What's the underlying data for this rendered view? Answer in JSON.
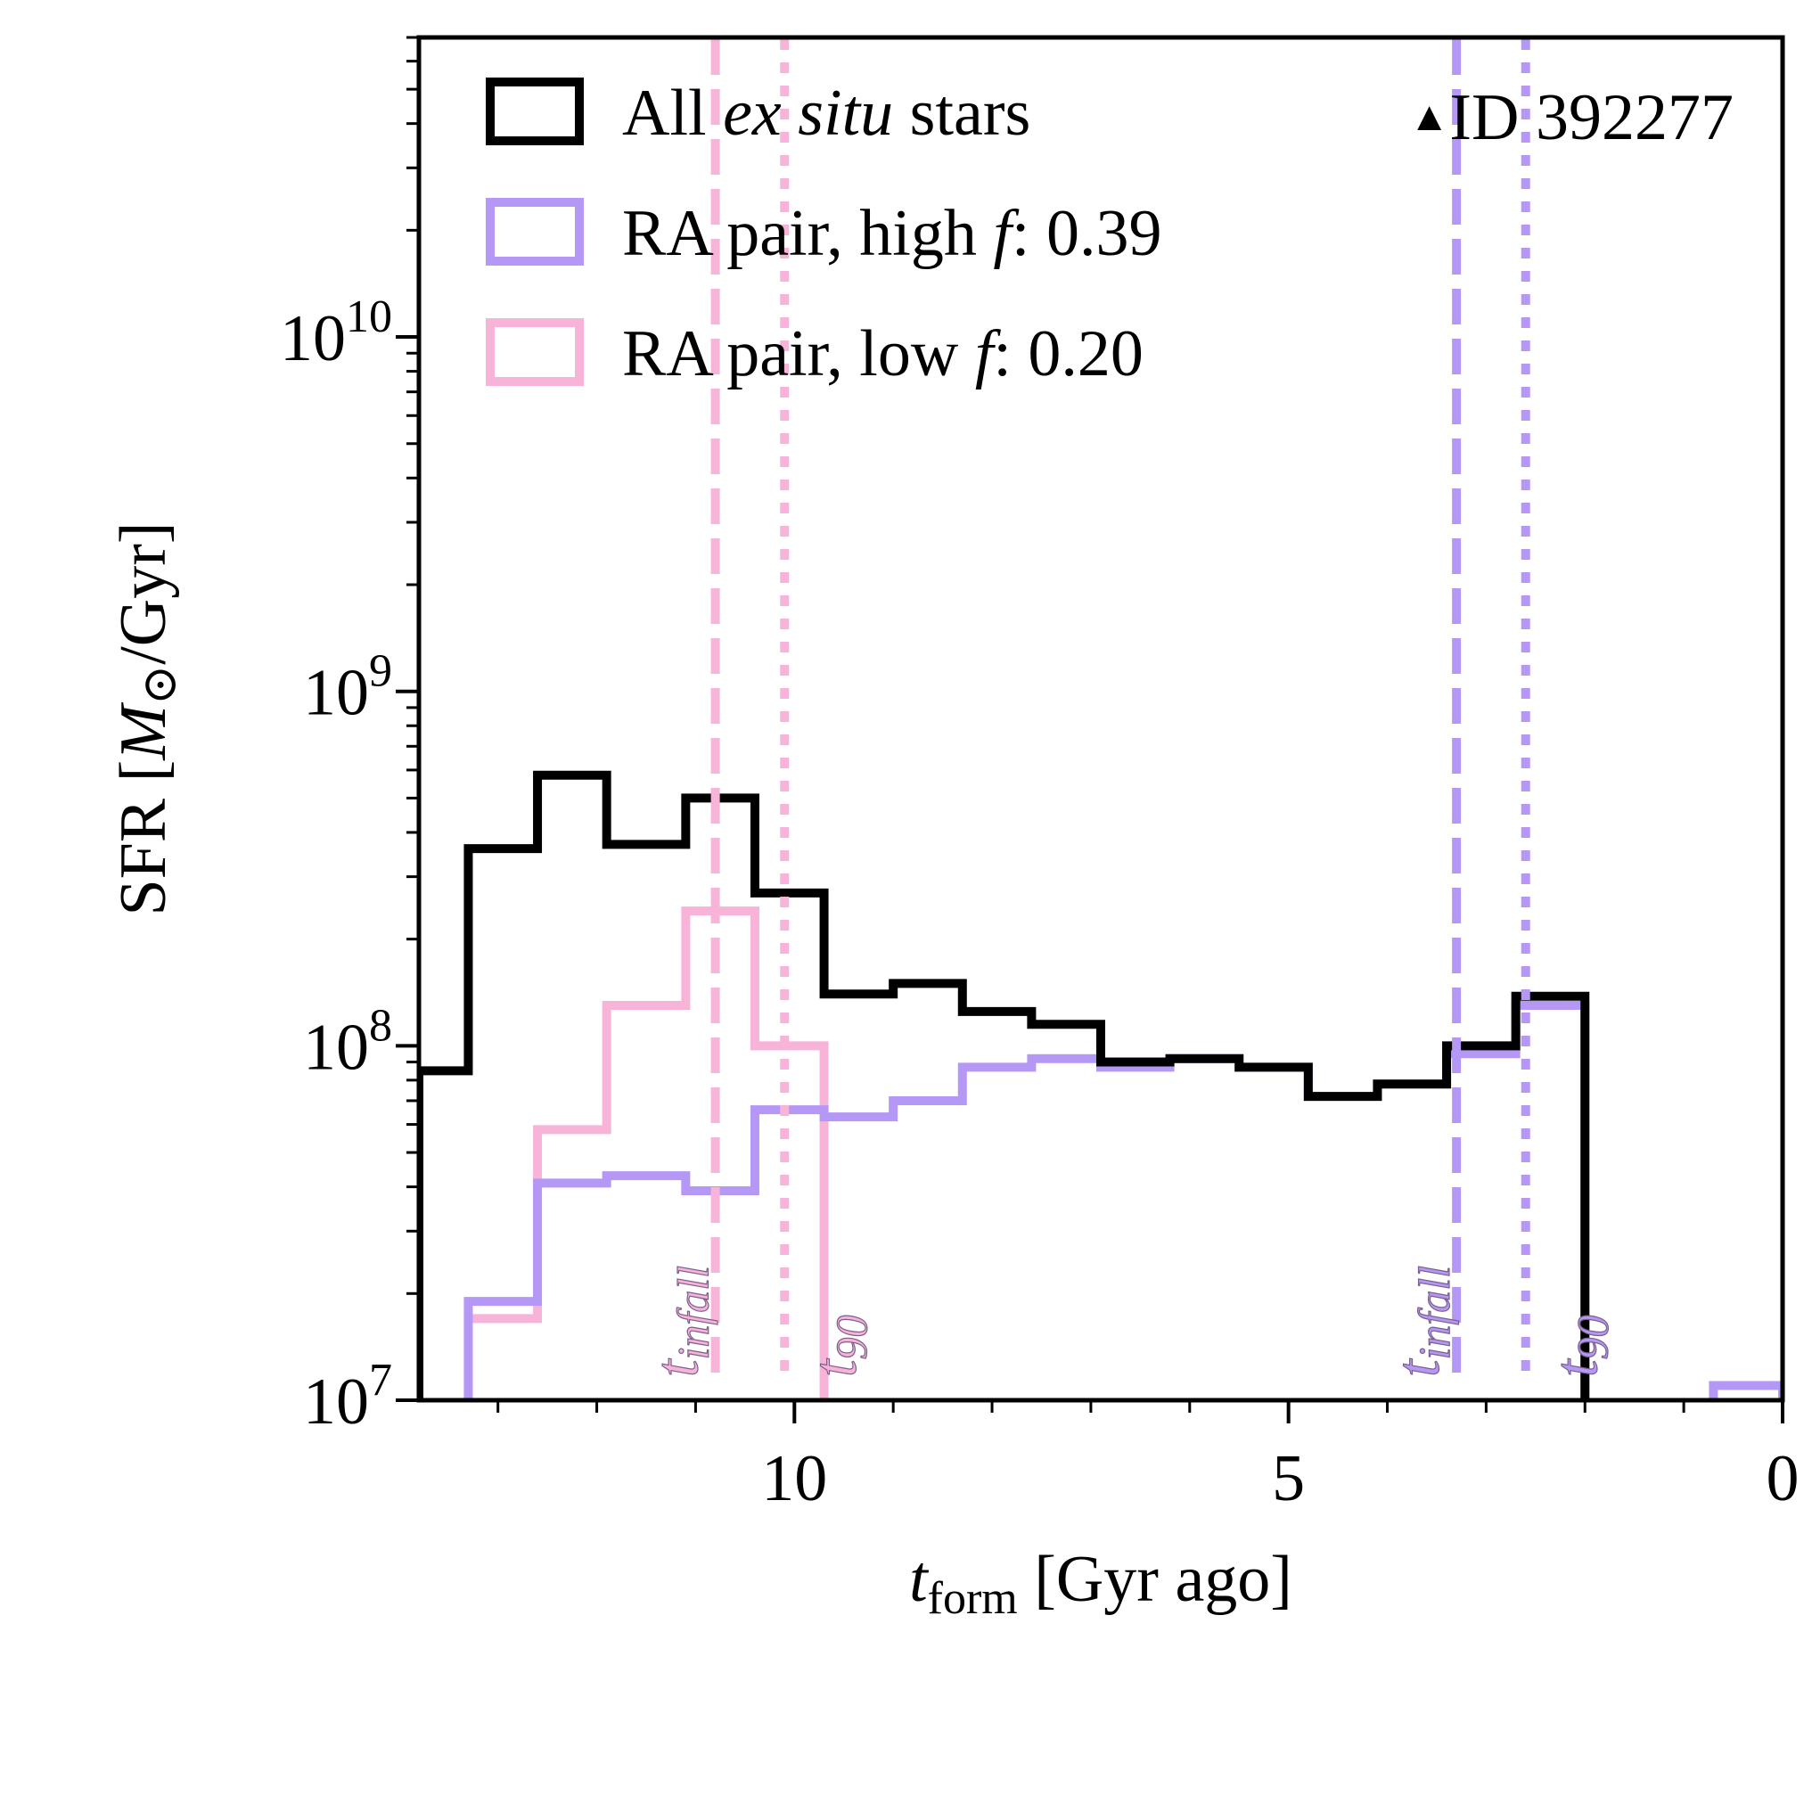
{
  "chart_data": {
    "type": "histogram-step",
    "title": "",
    "xlabel": "t_form [Gyr ago]",
    "xlabel_main": "t",
    "xlabel_sub": "form",
    "xlabel_rest": " [Gyr ago]",
    "ylabel": "SFR [M☉/Gyr]",
    "ylabel_pre": "SFR [",
    "ylabel_M": "M",
    "ylabel_sun": "⊙",
    "ylabel_post": "/Gyr]",
    "x_reversed": true,
    "xlim": [
      13.8,
      0
    ],
    "ylim": [
      10000000.0,
      70000000000.0
    ],
    "yscale": "log",
    "x_major_ticks": [
      10,
      5,
      0
    ],
    "x_tick_labels": [
      "10",
      "5",
      "0"
    ],
    "x_minor_ticks": [
      13,
      12,
      11,
      9,
      8,
      7,
      6,
      4,
      3,
      2,
      1
    ],
    "y_major_ticks": [
      10000000.0,
      100000000.0,
      1000000000.0,
      10000000000.0
    ],
    "y_tick_labels": [
      {
        "base": "10",
        "exp": "7"
      },
      {
        "base": "10",
        "exp": "8"
      },
      {
        "base": "10",
        "exp": "9"
      },
      {
        "base": "10",
        "exp": "10"
      }
    ],
    "bin_edges": [
      13.8,
      13.3,
      12.6,
      11.9,
      11.1,
      10.4,
      9.7,
      9.0,
      8.3,
      7.6,
      6.9,
      6.2,
      5.5,
      4.8,
      4.1,
      3.4,
      2.7,
      2.0,
      1.3,
      0.7,
      0.0
    ],
    "series": [
      {
        "name": "All ex situ stars",
        "color": "#000000",
        "values": [
          85000000.0,
          360000000.0,
          580000000.0,
          370000000.0,
          500000000.0,
          270000000.0,
          140000000.0,
          150000000.0,
          125000000.0,
          115000000.0,
          90000000.0,
          92000000.0,
          87000000.0,
          72000000.0,
          78000000.0,
          100000000.0,
          138000000.0,
          0,
          0,
          0
        ]
      },
      {
        "name": "RA pair, high f: 0.39",
        "color": "#b597f5",
        "values": [
          0,
          19000000.0,
          41000000.0,
          43000000.0,
          39000000.0,
          66000000.0,
          63000000.0,
          70000000.0,
          87000000.0,
          92000000.0,
          87000000.0,
          92000000.0,
          87000000.0,
          72000000.0,
          78000000.0,
          95000000.0,
          130000000.0,
          0,
          0,
          11000000.0
        ]
      },
      {
        "name": "RA pair, low f: 0.20",
        "color": "#f8b3d9",
        "values": [
          0,
          17000000.0,
          58000000.0,
          130000000.0,
          240000000.0,
          100000000.0,
          0,
          0,
          0,
          0,
          0,
          0,
          0,
          0,
          0,
          0,
          0,
          0,
          0,
          0
        ]
      }
    ],
    "vlines": [
      {
        "series": "low",
        "kind": "t_infall",
        "x": 10.8,
        "style": "dashed",
        "color": "#f8b3d9"
      },
      {
        "series": "low",
        "kind": "t_90",
        "x": 10.1,
        "style": "dotted",
        "color": "#f8b3d9"
      },
      {
        "series": "high",
        "kind": "t_infall",
        "x": 3.3,
        "style": "dashed",
        "color": "#b597f5"
      },
      {
        "series": "high",
        "kind": "t_90",
        "x": 2.6,
        "style": "dotted",
        "color": "#b597f5"
      }
    ],
    "annotations": [
      {
        "main": "t",
        "sub": "infall",
        "color": "#f8b3d9"
      },
      {
        "main": "t",
        "sub": "90",
        "color": "#f8b3d9"
      },
      {
        "main": "t",
        "sub": "infall",
        "color": "#b597f5"
      },
      {
        "main": "t",
        "sub": "90",
        "color": "#b597f5"
      }
    ],
    "legend": {
      "placement": "top-left",
      "entries": [
        {
          "pre": "All ",
          "italic": "ex situ",
          "post": " stars",
          "color": "#000000"
        },
        {
          "pre": "RA pair, high ",
          "italic": "f",
          "post": ": 0.39",
          "color": "#b597f5"
        },
        {
          "pre": "RA pair, low ",
          "italic": "f",
          "post": ": 0.20",
          "color": "#f8b3d9"
        }
      ]
    },
    "id_label": {
      "marker": "▲",
      "text": "ID 392277",
      "placement": "top-right"
    }
  }
}
